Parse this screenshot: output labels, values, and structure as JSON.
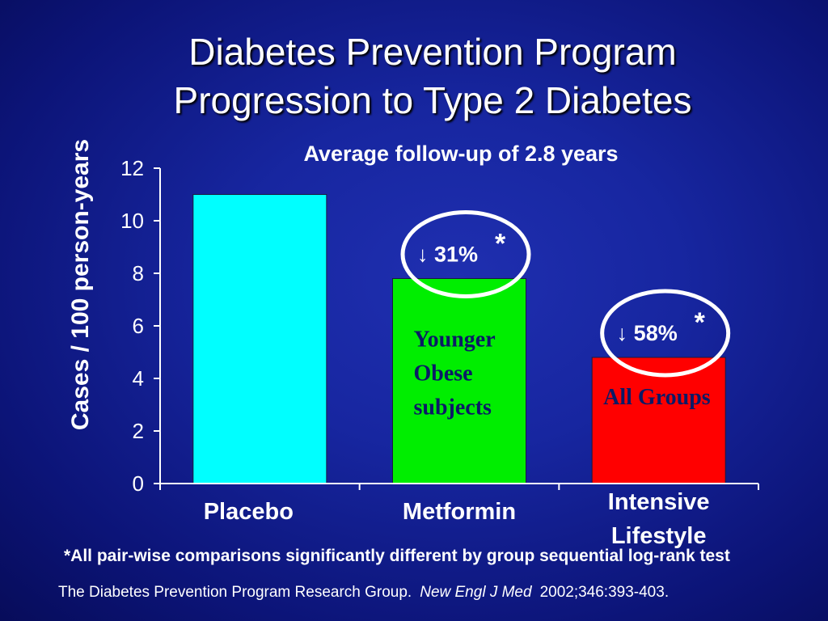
{
  "slide": {
    "title_line1": "Diabetes Prevention Program",
    "title_line2": "Progression to Type 2 Diabetes",
    "subtitle": "Average follow-up of 2.8 years",
    "footnote": "*All pair-wise comparisons significantly different by group sequential log-rank test",
    "citation": {
      "text": "The Diabetes Prevention Program Research Group.",
      "journal": "New Engl J Med",
      "ref": "2002;346:393-403."
    }
  },
  "chart_data": {
    "type": "bar",
    "ylabel": "Cases / 100 person-years",
    "ylim": [
      0,
      12
    ],
    "yticks": [
      0,
      2,
      4,
      6,
      8,
      10,
      12
    ],
    "categories": [
      {
        "lines": [
          "Placebo"
        ]
      },
      {
        "lines": [
          "Metformin"
        ]
      },
      {
        "lines": [
          "Intensive",
          "Lifestyle"
        ]
      }
    ],
    "values": [
      11.0,
      7.8,
      4.8
    ],
    "colors": [
      "#00ffff",
      "#00ee00",
      "#ff0000"
    ],
    "annotations": [
      {
        "bar": 1,
        "arrow": "↓",
        "text": "31%",
        "star": "*"
      },
      {
        "bar": 2,
        "arrow": "↓",
        "text": "58%",
        "star": "*"
      }
    ],
    "bar_notes": [
      {
        "bar": 1,
        "lines": [
          "Younger",
          "Obese",
          "subjects"
        ]
      },
      {
        "bar": 2,
        "lines": [
          "All Groups"
        ]
      }
    ],
    "grid": false,
    "legend": "none"
  }
}
